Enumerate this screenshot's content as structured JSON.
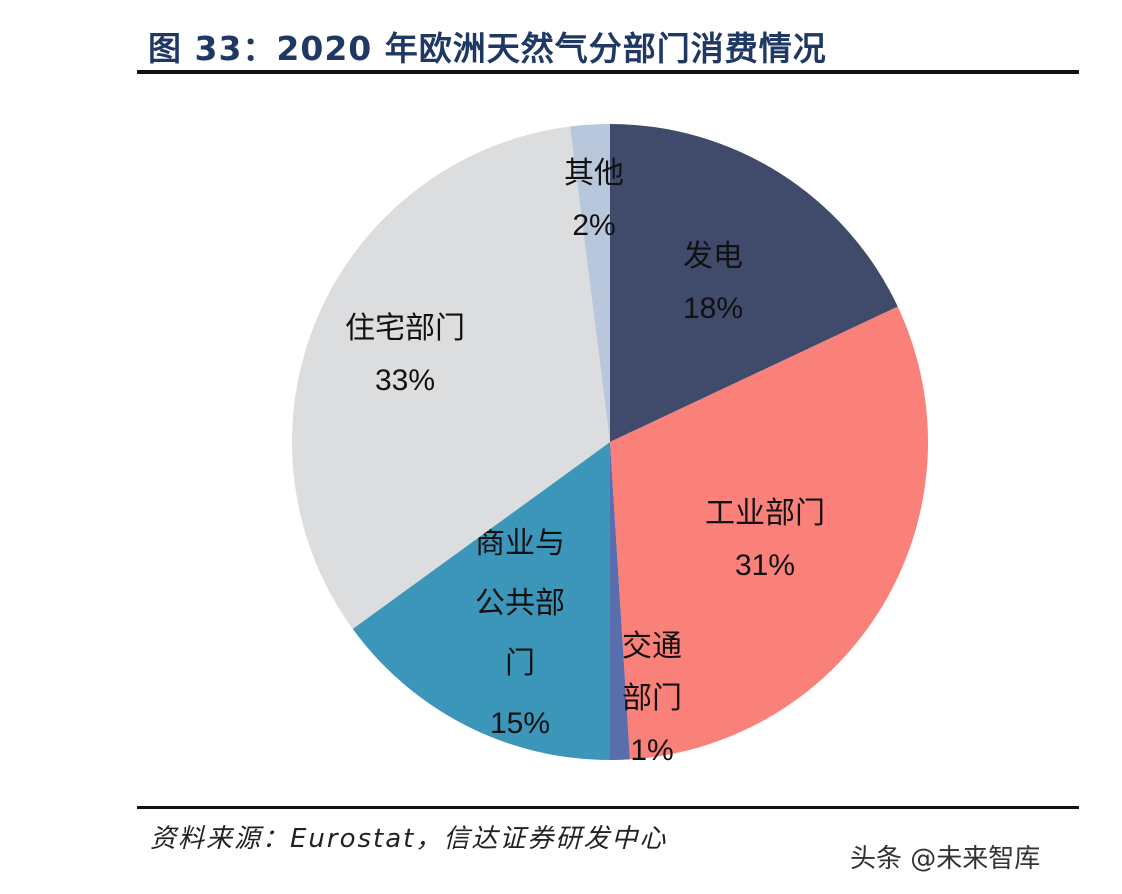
{
  "chart_data": {
    "type": "pie",
    "title": "图 33：2020 年欧洲天然气分部门消费情况",
    "start": "12 o'clock, clockwise",
    "slices": [
      {
        "name": "发电",
        "value": 18,
        "label": "18%",
        "color": "#404b6c"
      },
      {
        "name": "工业部门",
        "value": 31,
        "label": "31%",
        "color": "#fa807a"
      },
      {
        "name": "交通部门",
        "value": 1,
        "label": "1%",
        "color": "#5a6eae"
      },
      {
        "name": "商业与公共部门",
        "value": 15,
        "label": "15%",
        "color": "#3b96ba"
      },
      {
        "name": "住宅部门",
        "value": 33,
        "label": "33%",
        "color": "#dcdddf"
      },
      {
        "name": "其他",
        "value": 2,
        "label": "2%",
        "color": "#b8c7dc"
      }
    ]
  },
  "source": "资料来源：Eurostat，信达证券研发中心",
  "watermark": "头条 @未来智库"
}
